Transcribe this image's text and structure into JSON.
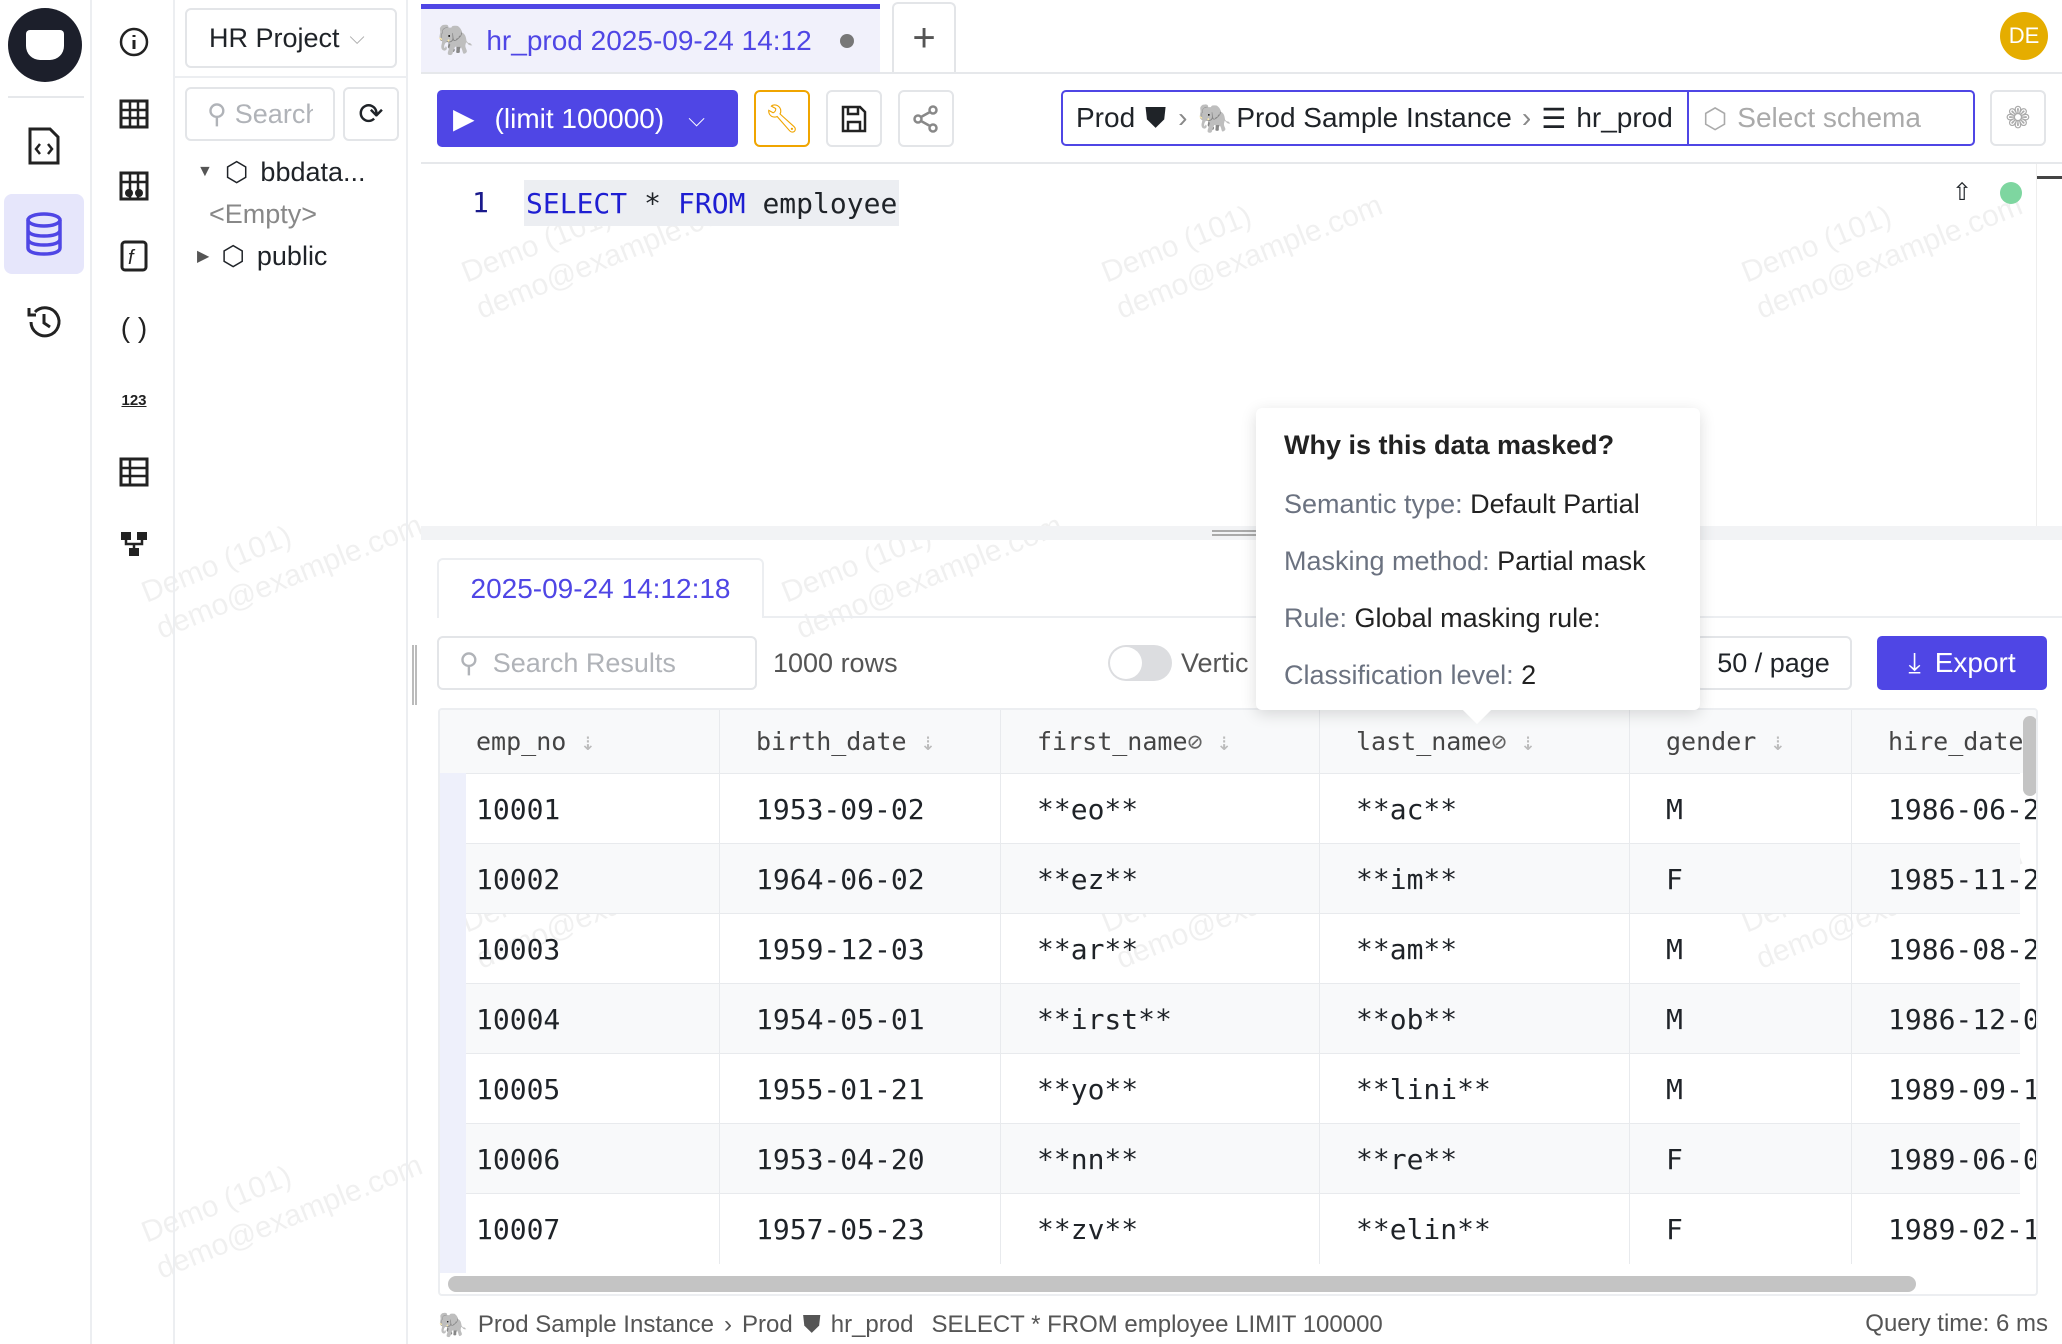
{
  "app": {
    "avatar": "DE",
    "accent": "#4f46e5"
  },
  "rail2_icons": [
    "info-icon",
    "table-icon",
    "view-icon",
    "function-icon",
    "parentheses-icon",
    "sequence-icon",
    "grid-icon",
    "hierarchy-icon"
  ],
  "sidebar": {
    "project": "HR Project",
    "search_placeholder": "Search",
    "tree": [
      {
        "label": "bbdata..."
      },
      {
        "label": "<Empty>"
      },
      {
        "label": "public"
      }
    ]
  },
  "tab": {
    "title": "hr_prod 2025-09-24 14:12",
    "add": "+"
  },
  "toolbar": {
    "run_label": "(limit 100000)",
    "context": {
      "env": "Prod",
      "instance": "Prod Sample Instance",
      "database": "hr_prod",
      "schema_placeholder": "Select schema"
    }
  },
  "editor": {
    "line": "1",
    "kw1": "SELECT",
    "op": "*",
    "kw2": "FROM",
    "table": "employee"
  },
  "results": {
    "tab": "2025-09-24 14:12:18",
    "search_placeholder": "Search Results",
    "row_count": "1000 rows",
    "vertical_label": "Vertic",
    "page_size": "50 / page",
    "export": "Export",
    "columns": [
      "emp_no",
      "birth_date",
      "first_name",
      "last_name",
      "gender",
      "hire_date"
    ],
    "rows": [
      [
        "10001",
        "1953-09-02",
        "**eo**",
        "**ac**",
        "M",
        "1986-06-2"
      ],
      [
        "10002",
        "1964-06-02",
        "**ez**",
        "**im**",
        "F",
        "1985-11-2"
      ],
      [
        "10003",
        "1959-12-03",
        "**ar**",
        "**am**",
        "M",
        "1986-08-2"
      ],
      [
        "10004",
        "1954-05-01",
        "**irst**",
        "**ob**",
        "M",
        "1986-12-0"
      ],
      [
        "10005",
        "1955-01-21",
        "**yo**",
        "**lini**",
        "M",
        "1989-09-1"
      ],
      [
        "10006",
        "1953-04-20",
        "**nn**",
        "**re**",
        "F",
        "1989-06-0"
      ],
      [
        "10007",
        "1957-05-23",
        "**zv**",
        "**elin**",
        "F",
        "1989-02-1"
      ]
    ]
  },
  "tooltip": {
    "title": "Why is this data masked?",
    "semantic_label": "Semantic type:",
    "semantic": "Default Partial",
    "method_label": "Masking method:",
    "method": "Partial mask",
    "rule_label": "Rule:",
    "rule": "Global masking rule:",
    "class_label": "Classification level:",
    "class": "2"
  },
  "status": {
    "instance": "Prod Sample Instance",
    "env": "Prod",
    "database": "hr_prod",
    "query": "SELECT * FROM employee LIMIT 100000",
    "time": "Query time: 6 ms"
  },
  "watermark": {
    "line1": "Demo (101)",
    "line2": "demo@example.com"
  }
}
